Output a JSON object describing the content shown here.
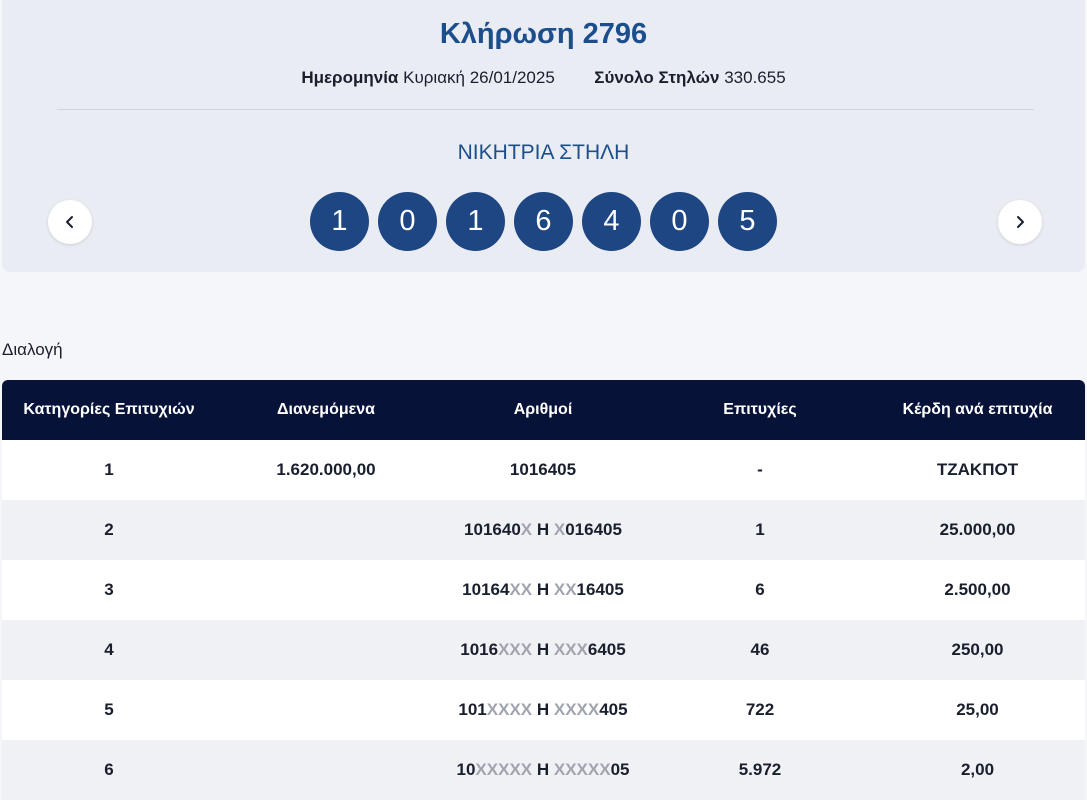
{
  "draw": {
    "title": "Κλήρωση 2796",
    "date_label": "Ημερομηνία",
    "date_value": "Κυριακή 26/01/2025",
    "columns_label": "Σύνολο Στηλών",
    "columns_value": "330.655",
    "winning_title": "ΝΙΚΗΤΡΙΑ ΣΤΗΛΗ",
    "numbers": [
      "1",
      "0",
      "1",
      "6",
      "4",
      "0",
      "5"
    ],
    "prev_icon": "chevron-left-icon",
    "next_icon": "chevron-right-icon"
  },
  "section": {
    "label": "Διαλογή"
  },
  "table": {
    "headers": [
      "Κατηγορίες Επιτυχιών",
      "Διανεμόμενα",
      "Αριθμοί",
      "Επιτυχίες",
      "Κέρδη ανά επιτυχία"
    ],
    "rows": [
      {
        "category": "1",
        "distributed": "1.620.000,00",
        "num_left": "1016405",
        "num_left_mask": "",
        "separator": "",
        "num_right_mask": "",
        "num_right": "",
        "winners": "-",
        "prize": "ΤΖΑΚΠΟΤ"
      },
      {
        "category": "2",
        "distributed": "",
        "num_left": "101640",
        "num_left_mask": "X",
        "separator": " Η ",
        "num_right_mask": "X",
        "num_right": "016405",
        "winners": "1",
        "prize": "25.000,00"
      },
      {
        "category": "3",
        "distributed": "",
        "num_left": "10164",
        "num_left_mask": "XX",
        "separator": " Η ",
        "num_right_mask": "XX",
        "num_right": "16405",
        "winners": "6",
        "prize": "2.500,00"
      },
      {
        "category": "4",
        "distributed": "",
        "num_left": "1016",
        "num_left_mask": "XXX",
        "separator": " Η ",
        "num_right_mask": "XXX",
        "num_right": "6405",
        "winners": "46",
        "prize": "250,00"
      },
      {
        "category": "5",
        "distributed": "",
        "num_left": "101",
        "num_left_mask": "XXXX",
        "separator": " Η ",
        "num_right_mask": "XXXX",
        "num_right": "405",
        "winners": "722",
        "prize": "25,00"
      },
      {
        "category": "6",
        "distributed": "",
        "num_left": "10",
        "num_left_mask": "XXXXX",
        "separator": " Η ",
        "num_right_mask": "XXXXX",
        "num_right": "05",
        "winners": "5.972",
        "prize": "2,00"
      }
    ]
  },
  "colors": {
    "ball": "#1d4682",
    "title": "#1c4e8c",
    "table_header": "#071238",
    "mask": "#a0a4ae"
  }
}
